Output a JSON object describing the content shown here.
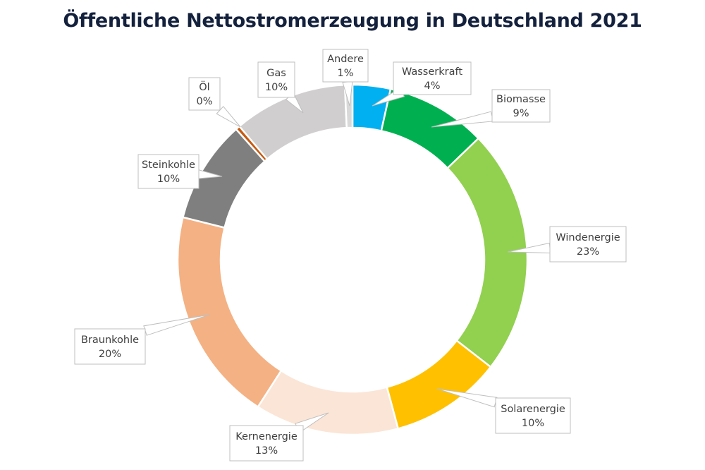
{
  "chart_data": {
    "type": "pie",
    "variant": "donut",
    "title": "Öffentliche Nettostromerzeugung in Deutschland 2021",
    "unit": "%",
    "start": "top",
    "direction": "clockwise",
    "categories": [
      "Wasserkraft",
      "Biomasse",
      "Windenergie",
      "Solarenergie",
      "Kernenergie",
      "Braunkohle",
      "Steinkohle",
      "Öl",
      "Gas",
      "Andere"
    ],
    "values": [
      3.5,
      9.3,
      22.7,
      10.3,
      13.3,
      19.8,
      9.5,
      0.4,
      10.5,
      0.7
    ],
    "labels": [
      "4%",
      "9%",
      "23%",
      "10%",
      "13%",
      "20%",
      "10%",
      "0%",
      "10%",
      "1%"
    ],
    "colors": [
      "#00b0f0",
      "#00b050",
      "#92d050",
      "#ffc000",
      "#fbe5d6",
      "#f4b183",
      "#7f7f7f",
      "#c55a11",
      "#d0cece",
      "#d9d9d9"
    ],
    "legend": "none"
  }
}
